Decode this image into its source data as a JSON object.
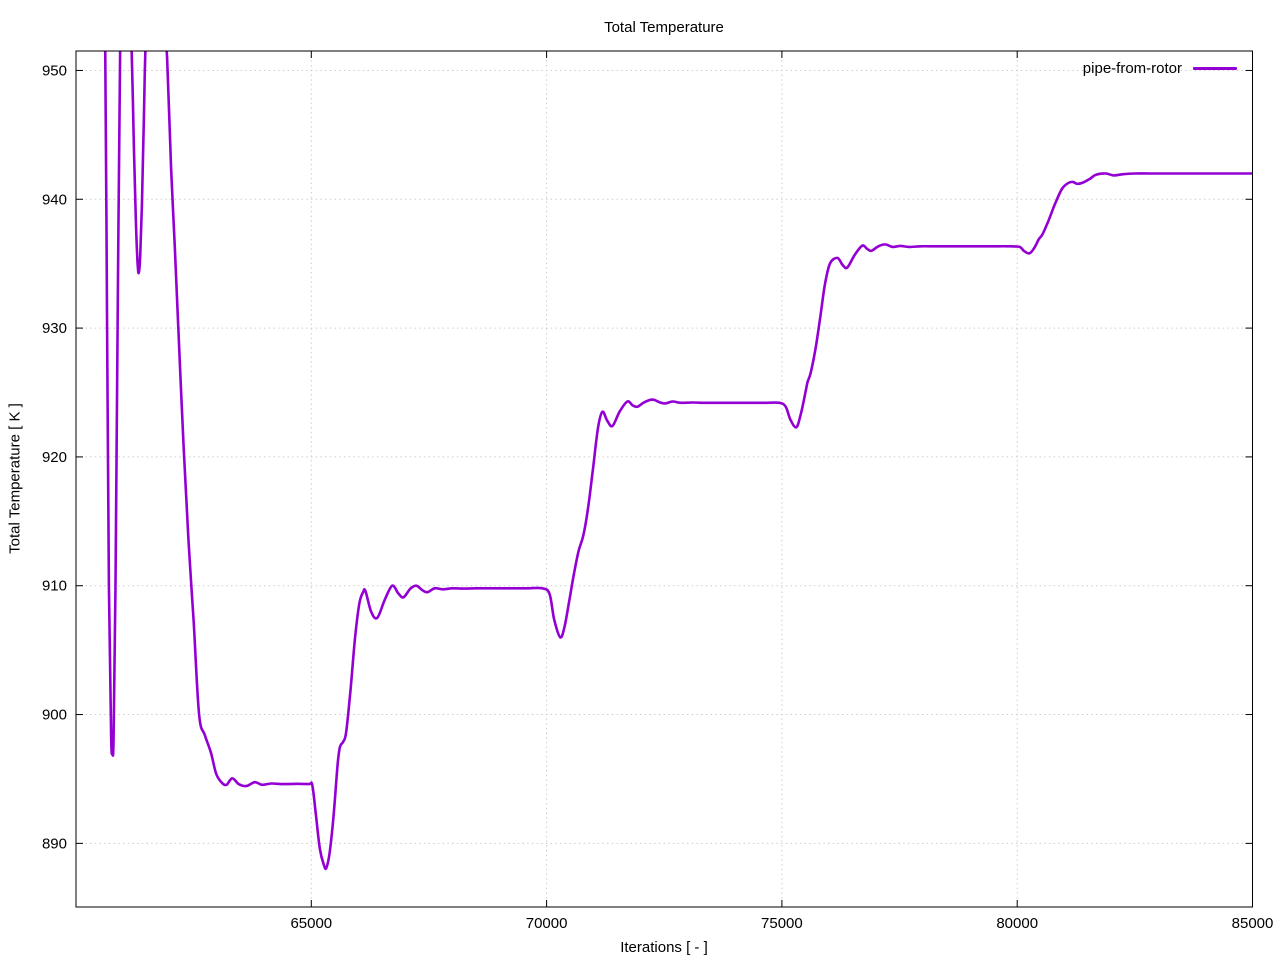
{
  "chart_data": {
    "type": "line",
    "title": "Total Temperature",
    "xlabel": "Iterations [ - ]",
    "ylabel": "Total Temperature [ K ]",
    "xlim": [
      60000,
      85000
    ],
    "ylim": [
      885.06,
      951.51
    ],
    "x_ticks": [
      65000,
      70000,
      75000,
      80000,
      85000
    ],
    "y_ticks": [
      890,
      900,
      910,
      920,
      930,
      940,
      950
    ],
    "grid": true,
    "legend_position": "top-right-inside",
    "line_color": "#9400d3",
    "grid_color": "#cccccc",
    "axis_color": "#000000",
    "series": [
      {
        "name": "pipe-from-rotor",
        "x": [
          60550,
          60620,
          60660,
          60700,
          60745,
          60775,
          60800,
          60840,
          60890,
          60940,
          61000,
          61120,
          61180,
          61230,
          61270,
          61310,
          61335,
          61365,
          61400,
          61440,
          61480,
          61560,
          61750,
          61870,
          61935,
          62020,
          62100,
          62190,
          62290,
          62390,
          62500,
          62615,
          62740,
          62870,
          62980,
          63100,
          63200,
          63320,
          63460,
          63620,
          63800,
          63950,
          64150,
          64400,
          64700,
          64950,
          65020,
          65090,
          65180,
          65270,
          65320,
          65390,
          65470,
          65560,
          65610,
          65680,
          65740,
          65830,
          65930,
          66020,
          66100,
          66150,
          66270,
          66400,
          66560,
          66720,
          66850,
          66960,
          67100,
          67230,
          67360,
          67470,
          67620,
          67800,
          68000,
          68250,
          68500,
          68750,
          69000,
          69300,
          69600,
          69900,
          70060,
          70160,
          70290,
          70380,
          70480,
          70580,
          70680,
          70780,
          70880,
          70990,
          71090,
          71185,
          71290,
          71400,
          71550,
          71715,
          71830,
          71930,
          72080,
          72250,
          72400,
          72520,
          72680,
          72850,
          73100,
          73400,
          73700,
          74000,
          74300,
          74650,
          74950,
          75080,
          75180,
          75305,
          75400,
          75500,
          75545,
          75610,
          75710,
          75810,
          75910,
          76020,
          76180,
          76290,
          76390,
          76550,
          76710,
          76810,
          76900,
          77050,
          77200,
          77350,
          77520,
          77700,
          77950,
          78250,
          78550,
          78850,
          79150,
          79500,
          79800,
          80050,
          80140,
          80260,
          80360,
          80460,
          80540,
          80660,
          80800,
          80950,
          81080,
          81180,
          81280,
          81400,
          81550,
          81670,
          81880,
          82050,
          82250,
          82500,
          82800,
          83100,
          83400,
          83700,
          84000,
          84300,
          84600,
          84800,
          85000
        ],
        "y": [
          955,
          952,
          930,
          910,
          898.5,
          897.0,
          898.3,
          910,
          933,
          952,
          956,
          956,
          952,
          944,
          938.5,
          935.0,
          934.3,
          935.6,
          939.5,
          946,
          952,
          957,
          957,
          952.5,
          951.0,
          942.4,
          936.3,
          928.6,
          920.5,
          913.5,
          907.2,
          900.0,
          898.4,
          897.0,
          895.4,
          894.7,
          894.55,
          895.05,
          894.6,
          894.45,
          894.75,
          894.55,
          894.65,
          894.6,
          894.62,
          894.6,
          894.55,
          892.5,
          889.6,
          888.3,
          888.1,
          889.3,
          892.0,
          896.2,
          897.5,
          897.9,
          898.6,
          901.8,
          906.0,
          908.6,
          909.5,
          909.6,
          908.0,
          907.5,
          908.9,
          910.0,
          909.4,
          909.1,
          909.75,
          910.0,
          909.65,
          909.5,
          909.8,
          909.72,
          909.8,
          909.78,
          909.8,
          909.8,
          909.8,
          909.8,
          909.8,
          909.8,
          909.4,
          907.4,
          906.0,
          906.8,
          908.8,
          910.9,
          912.7,
          913.9,
          916.0,
          919.2,
          922.2,
          923.5,
          922.8,
          922.4,
          923.5,
          924.3,
          924.0,
          923.9,
          924.25,
          924.45,
          924.25,
          924.15,
          924.3,
          924.2,
          924.22,
          924.2,
          924.2,
          924.2,
          924.2,
          924.2,
          924.2,
          923.9,
          922.9,
          922.3,
          923.3,
          925.0,
          925.8,
          926.5,
          928.3,
          930.7,
          933.3,
          935.0,
          935.45,
          934.9,
          934.7,
          935.7,
          936.4,
          936.15,
          936.0,
          936.35,
          936.5,
          936.3,
          936.38,
          936.3,
          936.35,
          936.35,
          936.35,
          936.35,
          936.35,
          936.35,
          936.35,
          936.3,
          936.0,
          935.8,
          936.2,
          936.9,
          937.3,
          938.3,
          939.6,
          940.8,
          941.25,
          941.35,
          941.2,
          941.3,
          941.6,
          941.9,
          942.0,
          941.85,
          941.95,
          942.0,
          942.0,
          942.0,
          942.0,
          942.0,
          942.0,
          942.0,
          942.0,
          942.0,
          942.0
        ]
      }
    ]
  }
}
